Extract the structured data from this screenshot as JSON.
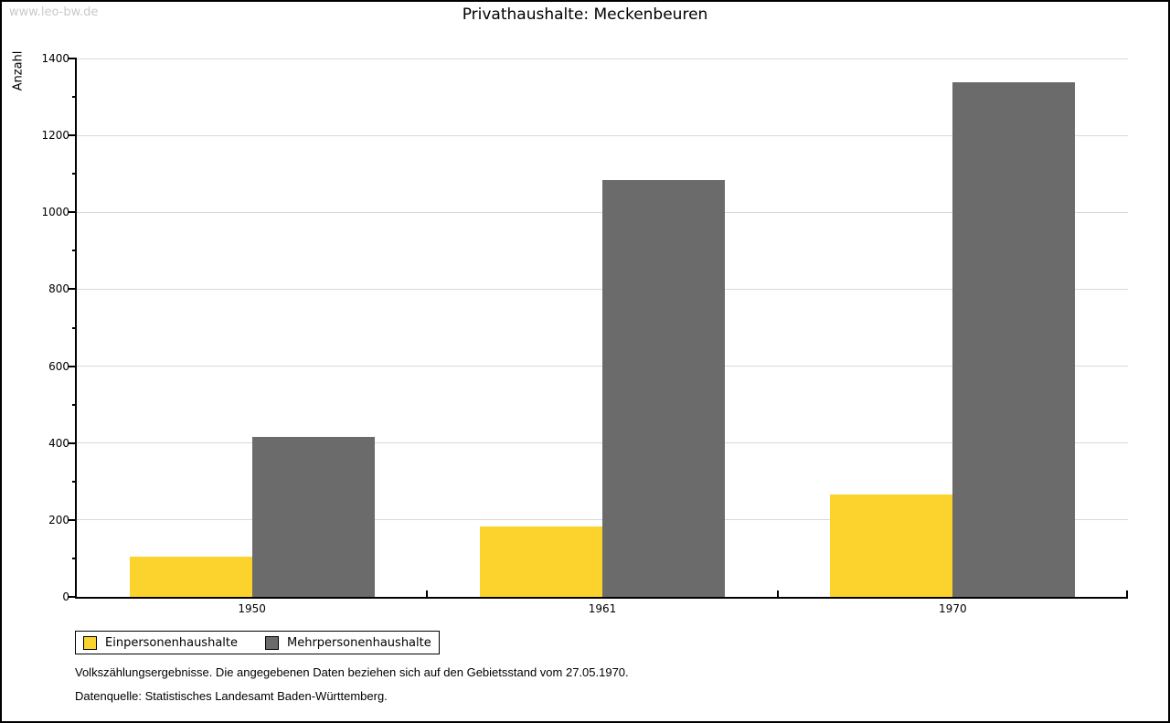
{
  "window": {
    "watermark": "www.leo-bw.de"
  },
  "chart_data": {
    "type": "bar",
    "title": "Privathaushalte: Meckenbeuren",
    "xlabel": "",
    "ylabel": "Anzahl",
    "categories": [
      "1950",
      "1961",
      "1970"
    ],
    "series": [
      {
        "name": "Einpersonenhaushalte",
        "color": "#fcd32d",
        "values": [
          105,
          182,
          267
        ]
      },
      {
        "name": "Mehrpersonenhaushalte",
        "color": "#6b6b6b",
        "values": [
          415,
          1083,
          1338
        ]
      }
    ],
    "ylim": [
      0,
      1400
    ],
    "yticks": [
      0,
      200,
      400,
      600,
      800,
      1000,
      1200,
      1400
    ],
    "yticks_minor": [
      100,
      300,
      500,
      700,
      900,
      1100,
      1300
    ],
    "grid": true,
    "gridline_color": "#d9d9d9",
    "legend_position": "bottom-left"
  },
  "footer": {
    "line1": "Volkszählungsergebnisse. Die angegebenen Daten beziehen sich auf den Gebietsstand vom 27.05.1970.",
    "line2": "Datenquelle: Statistisches Landesamt Baden-Württemberg."
  }
}
